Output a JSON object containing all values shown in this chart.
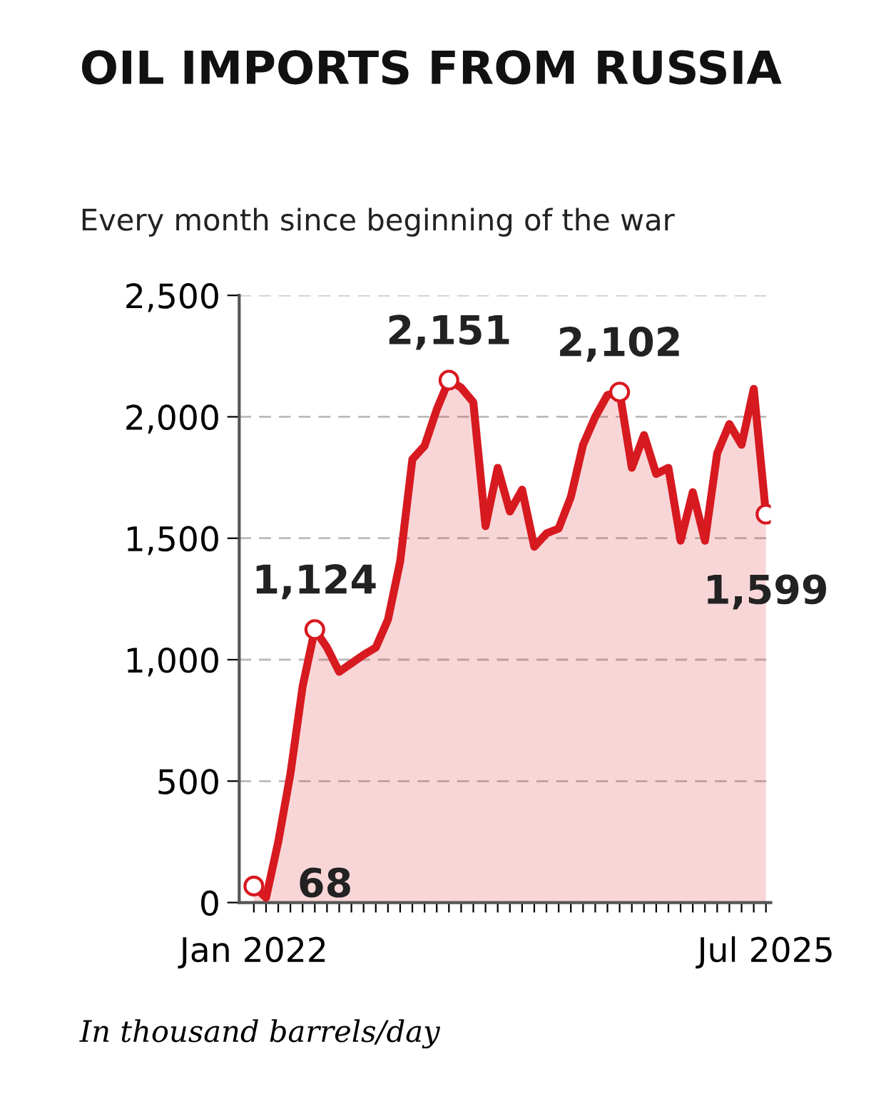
{
  "chart_data": {
    "type": "area",
    "title": "OIL IMPORTS FROM RUSSIA",
    "subtitle": "Every month since beginning of the war",
    "categories": [
      "Jan 2022",
      null,
      null,
      null,
      null,
      null,
      null,
      null,
      null,
      null,
      null,
      null,
      null,
      null,
      null,
      null,
      null,
      null,
      null,
      null,
      null,
      null,
      null,
      null,
      null,
      null,
      null,
      null,
      null,
      null,
      null,
      null,
      null,
      null,
      null,
      null,
      null,
      null,
      null,
      null,
      null,
      null,
      "Jul 2025"
    ],
    "series": [
      {
        "color": "#d71920",
        "values": [
          68,
          20,
          250,
          530,
          890,
          1124,
          1050,
          950,
          985,
          1020,
          1050,
          1165,
          1405,
          1825,
          1880,
          2030,
          2151,
          2120,
          2060,
          1550,
          1790,
          1610,
          1700,
          1465,
          1520,
          1540,
          1670,
          1885,
          2000,
          2090,
          2102,
          1790,
          1925,
          1765,
          1790,
          1490,
          1690,
          1490,
          1850,
          1970,
          1885,
          2115,
          1599
        ],
        "value_labels": [
          "68",
          null,
          null,
          null,
          null,
          "1,124",
          null,
          null,
          null,
          null,
          null,
          null,
          null,
          null,
          null,
          null,
          "2,151",
          null,
          null,
          null,
          null,
          null,
          null,
          null,
          null,
          null,
          null,
          null,
          null,
          null,
          "2,102",
          null,
          null,
          null,
          null,
          null,
          null,
          null,
          null,
          null,
          null,
          null,
          "1,599"
        ]
      }
    ],
    "ylim": [
      0,
      2500
    ],
    "yticks": [
      0,
      {
        "value": 500,
        "label": "500"
      },
      {
        "value": 1000,
        "label": "1,000"
      },
      {
        "value": 1500,
        "label": "1,500"
      },
      {
        "value": 2000,
        "label": "2,000"
      },
      {
        "value": 2500,
        "label": "2,500"
      }
    ],
    "grid": "y",
    "annotations": [
      "In thousand barrels/day"
    ]
  }
}
